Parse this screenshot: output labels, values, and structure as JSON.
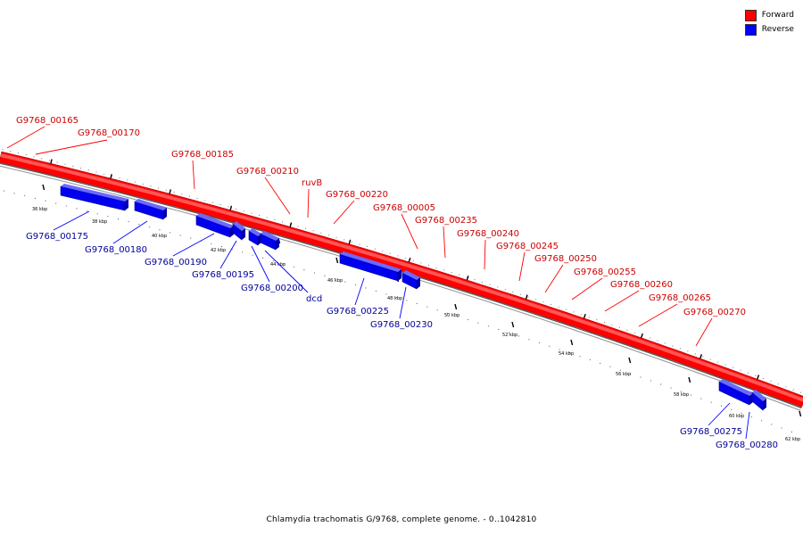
{
  "legend": {
    "items": [
      {
        "label": "Forward",
        "color": "#ff0000"
      },
      {
        "label": "Reverse",
        "color": "#0000ff"
      }
    ]
  },
  "footer": "Chlamydia trachomatis G/9768, complete genome. - 0..1042810",
  "colors": {
    "forward": "#ff0000",
    "reverse": "#0000ff",
    "forward_label": "#cc0000",
    "reverse_label": "#000099"
  },
  "ticks": [
    "36 kbp",
    "38 kbp",
    "40 kbp",
    "42 kbp",
    "44 kbp",
    "46 kbp",
    "48 kbp",
    "50 kbp",
    "52 kbp",
    "54 kbp",
    "56 kbp",
    "58 kbp",
    "60 kbp",
    "62 kbp"
  ],
  "forward_genes": [
    "G9768_00165",
    "G9768_00170",
    "G9768_00185",
    "G9768_00210",
    "ruvB",
    "G9768_00220",
    "G9768_00005",
    "G9768_00235",
    "G9768_00240",
    "G9768_00245",
    "G9768_00250",
    "G9768_00255",
    "G9768_00260",
    "G9768_00265",
    "G9768_00270"
  ],
  "reverse_genes": [
    "G9768_00175",
    "G9768_00180",
    "G9768_00190",
    "G9768_00195",
    "G9768_00200",
    "dcd",
    "G9768_00225",
    "G9768_00230",
    "G9768_00275",
    "G9768_00280"
  ]
}
